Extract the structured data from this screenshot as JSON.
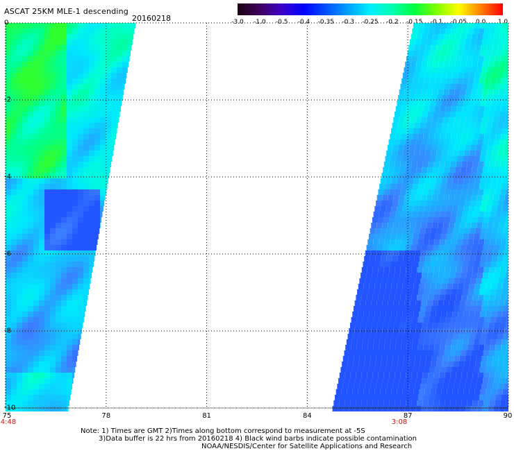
{
  "header": {
    "title": "ASCAT 25KM MLE-1 descending",
    "date": "20160218"
  },
  "colorbar": {
    "labels": [
      "-3.0",
      "-1.0",
      "-0.5",
      "-0.4",
      "-0.35",
      "-0.3",
      "-0.25",
      "-0.2",
      "-0.15",
      "-0.1",
      "-0.05",
      "0.0",
      "1.0"
    ]
  },
  "axes": {
    "lon_ticks": [
      "75",
      "78",
      "81",
      "84",
      "87",
      "90"
    ],
    "lat_ticks": [
      "0",
      "-2",
      "-4",
      "-6",
      "-8",
      "-10"
    ],
    "lon_range": [
      75,
      90
    ],
    "lat_range": [
      -10,
      0
    ]
  },
  "pass_times": [
    {
      "label": "4:48",
      "lon": 75
    },
    {
      "label": "3:08",
      "lon": 87
    }
  ],
  "notes": {
    "line1": "Note: 1) Times are GMT 2)Times along bottom correspond to measurement at -5S",
    "line2": "3)Data buffer is 22 hrs from 20160218 4) Black wind barbs indicate possible contamination",
    "line3": "NOAA/NESDIS/Center for Satellite Applications and Research"
  },
  "colors": {
    "grid": "#000000",
    "pass_time": "#c0181a",
    "scale": [
      "#1a0010",
      "#400060",
      "#3c00c8",
      "#0000ff",
      "#0050ff",
      "#00a0ff",
      "#00f0ff",
      "#00ffb0",
      "#00ff40",
      "#80ff00",
      "#ffff00",
      "#ff8000",
      "#ff0000"
    ]
  }
}
